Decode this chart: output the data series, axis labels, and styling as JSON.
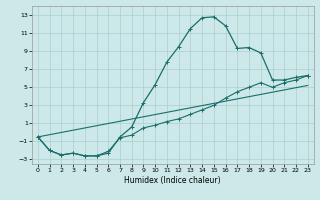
{
  "xlabel": "Humidex (Indice chaleur)",
  "bg_color": "#cce8e8",
  "grid_color": "#aacfcf",
  "line_color": "#1a6e6a",
  "xlim": [
    -0.5,
    23.5
  ],
  "ylim": [
    -3.5,
    14.0
  ],
  "xticks": [
    0,
    1,
    2,
    3,
    4,
    5,
    6,
    7,
    8,
    9,
    10,
    11,
    12,
    13,
    14,
    15,
    16,
    17,
    18,
    19,
    20,
    21,
    22,
    23
  ],
  "yticks": [
    -3,
    -1,
    1,
    3,
    5,
    7,
    9,
    11,
    13
  ],
  "main_x": [
    0,
    1,
    2,
    3,
    4,
    5,
    6,
    7,
    8,
    9,
    10,
    11,
    12,
    13,
    14,
    15,
    16,
    17,
    18,
    19,
    20,
    21,
    22,
    23
  ],
  "main_y": [
    -0.5,
    -2.0,
    -2.5,
    -2.3,
    -2.6,
    -2.6,
    -2.3,
    -0.5,
    0.6,
    3.3,
    5.3,
    7.8,
    9.5,
    11.5,
    12.7,
    12.8,
    11.8,
    9.3,
    9.4,
    8.8,
    5.8,
    5.8,
    6.1,
    6.3
  ],
  "line2_x": [
    0,
    1,
    2,
    3,
    4,
    5,
    6,
    7,
    8,
    9,
    10,
    11,
    12,
    13,
    14,
    15,
    16,
    17,
    18,
    19,
    20,
    21,
    22,
    23
  ],
  "line2_y": [
    -0.5,
    -2.0,
    -2.5,
    -2.3,
    -2.6,
    -2.6,
    -2.1,
    -0.6,
    -0.3,
    0.5,
    0.8,
    1.2,
    1.5,
    2.0,
    2.5,
    3.0,
    3.8,
    4.5,
    5.0,
    5.5,
    5.0,
    5.5,
    5.8,
    6.3
  ],
  "line3_x": [
    0,
    23
  ],
  "line3_y": [
    -0.5,
    5.2
  ]
}
